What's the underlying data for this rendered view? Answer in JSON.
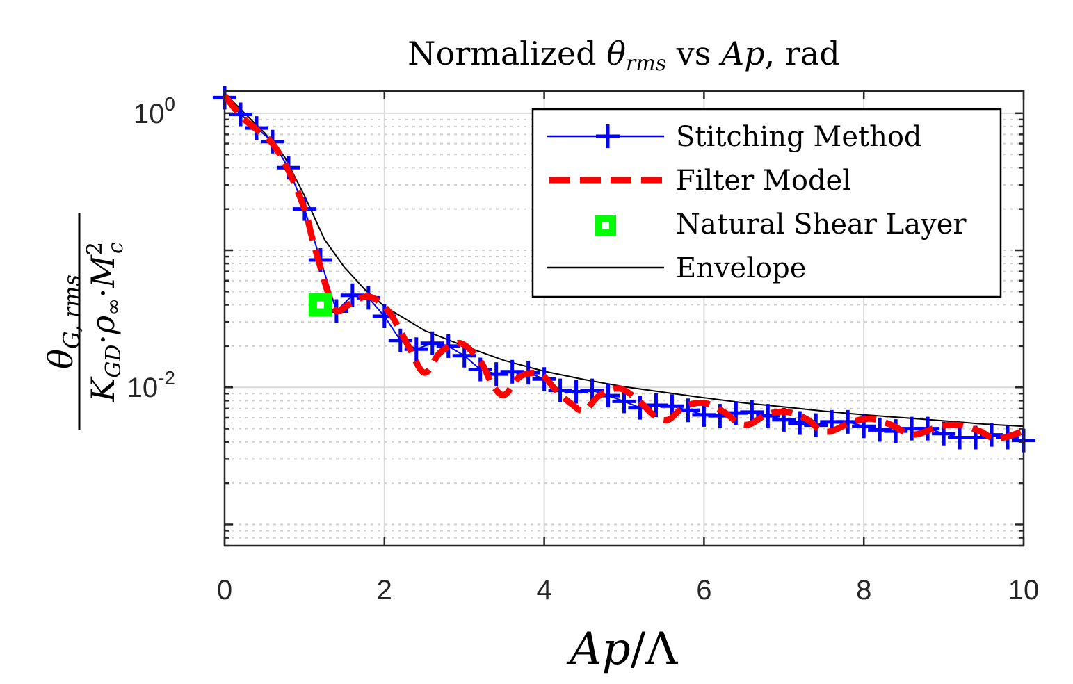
{
  "chart_data": {
    "type": "line",
    "title": {
      "pre": "Normalized ",
      "theta": "θ",
      "theta_sub": "rms",
      "mid": " vs ",
      "ap": "Ap",
      "post": ", rad"
    },
    "xlabel": {
      "main": "Ap",
      "sep": "/",
      "lam": "Λ"
    },
    "ylabel": {
      "num": "θ",
      "num_sub": "G, rms",
      "den_k": "K",
      "den_k_sub": "GD",
      "den_dot1": "·",
      "den_rho": "ρ",
      "den_rho_sub": "∞",
      "den_dot2": "·",
      "den_m": "M",
      "den_m_sup": "2",
      "den_m_sub": "c"
    },
    "x_ticks": [
      "0",
      "2",
      "4",
      "6",
      "8",
      "10"
    ],
    "y_ticks": [
      {
        "value": 1,
        "base": "10",
        "exp": "0"
      },
      {
        "value": 0.01,
        "base": "10",
        "exp": "-2"
      }
    ],
    "xlim": [
      0,
      10
    ],
    "ylim": [
      0.0007,
      1.45
    ],
    "y_scale": "log",
    "grid": true,
    "legend_position": "top-right",
    "series": [
      {
        "name": "Stitching Method",
        "color": "#0000FF",
        "marker": "plus",
        "x": [
          0.0,
          0.2,
          0.4,
          0.6,
          0.8,
          1.0,
          1.2,
          1.4,
          1.6,
          1.8,
          2.0,
          2.2,
          2.4,
          2.6,
          2.8,
          3.0,
          3.2,
          3.4,
          3.6,
          3.8,
          4.0,
          4.2,
          4.4,
          4.6,
          4.8,
          5.0,
          5.2,
          5.4,
          5.6,
          5.8,
          6.0,
          6.2,
          6.4,
          6.6,
          6.8,
          7.0,
          7.2,
          7.4,
          7.6,
          7.8,
          8.0,
          8.2,
          8.4,
          8.6,
          8.8,
          9.0,
          9.2,
          9.4,
          9.6,
          9.8,
          10.0
        ],
        "y": [
          1.3,
          0.98,
          0.78,
          0.62,
          0.4,
          0.2,
          0.085,
          0.036,
          0.047,
          0.045,
          0.033,
          0.022,
          0.019,
          0.021,
          0.02,
          0.017,
          0.0135,
          0.0125,
          0.013,
          0.0128,
          0.0115,
          0.0095,
          0.0093,
          0.0095,
          0.0087,
          0.0079,
          0.0071,
          0.0074,
          0.0073,
          0.0068,
          0.0063,
          0.0062,
          0.0065,
          0.0066,
          0.0062,
          0.0058,
          0.0055,
          0.0053,
          0.0056,
          0.0056,
          0.0052,
          0.0049,
          0.0048,
          0.005,
          0.005,
          0.0046,
          0.0043,
          0.0043,
          0.0045,
          0.0043,
          0.0041
        ]
      },
      {
        "name": "Filter Model",
        "color": "#FF0000",
        "style": "dashed",
        "x": [
          0.0,
          0.2,
          0.4,
          0.6,
          0.8,
          1.0,
          1.1,
          1.2,
          1.3,
          1.4,
          1.55,
          1.8,
          2.05,
          2.3,
          2.5,
          2.7,
          2.95,
          3.2,
          3.35,
          3.5,
          3.7,
          3.95,
          4.15,
          4.35,
          4.5,
          4.7,
          4.95,
          5.2,
          5.38,
          5.55,
          5.75,
          6.0,
          6.25,
          6.43,
          6.58,
          6.8,
          7.05,
          7.3,
          7.45,
          7.6,
          7.85,
          8.1,
          8.35,
          8.55,
          8.7,
          8.95,
          9.2,
          9.45,
          9.6,
          9.75,
          10.0
        ],
        "y": [
          1.35,
          0.96,
          0.76,
          0.6,
          0.38,
          0.2,
          0.12,
          0.075,
          0.048,
          0.036,
          0.04,
          0.046,
          0.036,
          0.02,
          0.0128,
          0.018,
          0.021,
          0.0155,
          0.0105,
          0.0088,
          0.012,
          0.0125,
          0.0095,
          0.0075,
          0.0068,
          0.0088,
          0.0098,
          0.0078,
          0.0062,
          0.0058,
          0.0072,
          0.0077,
          0.0066,
          0.0055,
          0.0054,
          0.0064,
          0.0066,
          0.0058,
          0.0049,
          0.0048,
          0.0056,
          0.0059,
          0.0053,
          0.0046,
          0.0046,
          0.0052,
          0.0053,
          0.0048,
          0.0043,
          0.0043,
          0.0048
        ]
      },
      {
        "name": "Natural Shear Layer",
        "color": "#00FF00",
        "marker": "square",
        "x": [
          1.2
        ],
        "y": [
          0.04
        ]
      },
      {
        "name": "Envelope",
        "color": "#000000",
        "style": "solid",
        "x": [
          0.0,
          0.25,
          0.5,
          0.75,
          1.0,
          1.25,
          1.5,
          1.75,
          2.0,
          2.5,
          3.0,
          3.5,
          4.0,
          4.5,
          5.0,
          5.5,
          6.0,
          6.5,
          7.0,
          7.5,
          8.0,
          8.5,
          9.0,
          9.5,
          10.0
        ],
        "y": [
          1.4,
          1.0,
          0.72,
          0.48,
          0.25,
          0.12,
          0.075,
          0.052,
          0.039,
          0.026,
          0.02,
          0.0157,
          0.0131,
          0.0114,
          0.0101,
          0.0092,
          0.0084,
          0.0077,
          0.0072,
          0.0067,
          0.0063,
          0.006,
          0.0057,
          0.0054,
          0.0052
        ]
      }
    ]
  }
}
